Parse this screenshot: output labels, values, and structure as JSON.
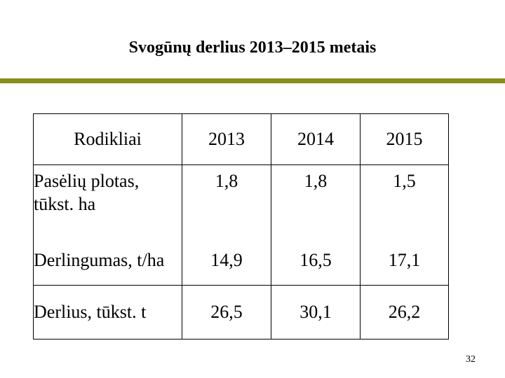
{
  "slide": {
    "title": "Svogūnų derlius 2013–2015 metais",
    "accent_color": "#8b8b1c",
    "page_number": "32"
  },
  "table": {
    "headers": [
      "Rodikliai",
      "2013",
      "2014",
      "2015"
    ],
    "rows": [
      {
        "label_lines": [
          "Pasėlių plotas,",
          "tūkst. ha"
        ],
        "values": [
          "1,8",
          "1,8",
          "1,5"
        ]
      },
      {
        "label_lines": [
          "Derlingumas, t/ha"
        ],
        "values": [
          "14,9",
          "16,5",
          "17,1"
        ]
      },
      {
        "label_lines": [
          "Derlius, tūkst. t"
        ],
        "values": [
          "26,5",
          "30,1",
          "26,2"
        ]
      }
    ]
  }
}
